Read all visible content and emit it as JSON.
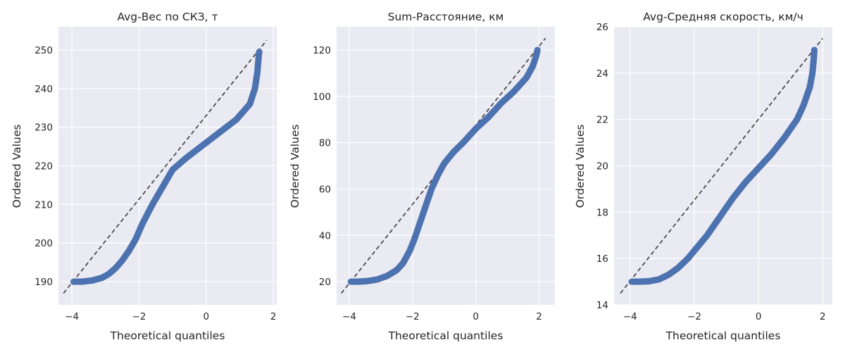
{
  "chart_data": [
    {
      "type": "scatter",
      "subtype": "qq-plot",
      "title": "Avg-Вес по СКЗ, т",
      "xlabel": "Theoretical quantiles",
      "ylabel": "Ordered Values",
      "xlim": [
        -4.4,
        2.1
      ],
      "ylim": [
        184,
        256
      ],
      "xticks": [
        -4,
        -2,
        0,
        2
      ],
      "xtick_labels": [
        "−4",
        "−2",
        "0",
        "2"
      ],
      "yticks": [
        190,
        200,
        210,
        220,
        230,
        240,
        250
      ],
      "ytick_labels": [
        "190",
        "200",
        "210",
        "220",
        "230",
        "240",
        "250"
      ],
      "grid": true,
      "reference_line": {
        "x": [
          -4.25,
          1.8
        ],
        "y": [
          187,
          252.5
        ]
      },
      "points": {
        "x": [
          -3.95,
          -3.7,
          -3.4,
          -3.1,
          -2.9,
          -2.7,
          -2.5,
          -2.3,
          -2.1,
          -1.9,
          -1.6,
          -1.3,
          -1.0,
          -0.6,
          -0.3,
          0.0,
          0.3,
          0.6,
          0.9,
          1.1,
          1.3,
          1.45,
          1.52,
          1.56,
          1.57,
          1.58
        ],
        "y": [
          190,
          190,
          190.3,
          191,
          192,
          193.5,
          195.5,
          198,
          201,
          205,
          210,
          214.5,
          219,
          222,
          224,
          226,
          228,
          230,
          232,
          234,
          236,
          240,
          244,
          248,
          249,
          249.5
        ]
      }
    },
    {
      "type": "scatter",
      "subtype": "qq-plot",
      "title": "Sum-Расстояние, км",
      "xlabel": "Theoretical quantiles",
      "ylabel": "Ordered Values",
      "xlim": [
        -4.4,
        2.5
      ],
      "ylim": [
        10,
        130
      ],
      "xticks": [
        -4,
        -2,
        0,
        2
      ],
      "xtick_labels": [
        "−4",
        "−2",
        "0",
        "2"
      ],
      "yticks": [
        20,
        40,
        60,
        80,
        100,
        120
      ],
      "ytick_labels": [
        "20",
        "40",
        "60",
        "80",
        "100",
        "120"
      ],
      "grid": true,
      "reference_line": {
        "x": [
          -4.25,
          2.2
        ],
        "y": [
          15,
          125
        ]
      },
      "points": {
        "x": [
          -3.95,
          -3.7,
          -3.4,
          -3.1,
          -2.8,
          -2.5,
          -2.3,
          -2.1,
          -1.95,
          -1.8,
          -1.6,
          -1.4,
          -1.2,
          -1.0,
          -0.7,
          -0.4,
          0.0,
          0.4,
          0.8,
          1.2,
          1.6,
          1.8,
          1.9,
          1.95
        ],
        "y": [
          20,
          20,
          20.3,
          21,
          22.5,
          25,
          28,
          33,
          38,
          44,
          52,
          60,
          66,
          71,
          76,
          80,
          86,
          91,
          97,
          102,
          108,
          113,
          117,
          120
        ]
      }
    },
    {
      "type": "scatter",
      "subtype": "qq-plot",
      "title": "Avg-Средняя скорость, км/ч",
      "xlabel": "Theoretical quantiles",
      "ylabel": "Ordered Values",
      "xlim": [
        -4.5,
        2.3
      ],
      "ylim": [
        14,
        26
      ],
      "xticks": [
        -4,
        -2,
        0,
        2
      ],
      "xtick_labels": [
        "−4",
        "−2",
        "0",
        "2"
      ],
      "yticks": [
        14,
        16,
        18,
        20,
        22,
        24,
        26
      ],
      "ytick_labels": [
        "14",
        "16",
        "18",
        "20",
        "22",
        "24",
        "26"
      ],
      "grid": true,
      "reference_line": {
        "x": [
          -4.3,
          2.0
        ],
        "y": [
          14.5,
          25.5
        ]
      },
      "points": {
        "x": [
          -3.95,
          -3.7,
          -3.4,
          -3.1,
          -2.8,
          -2.5,
          -2.2,
          -1.9,
          -1.6,
          -1.2,
          -0.8,
          -0.4,
          0.0,
          0.4,
          0.8,
          1.2,
          1.4,
          1.6,
          1.68,
          1.72,
          1.74
        ],
        "y": [
          15,
          15,
          15.02,
          15.1,
          15.3,
          15.6,
          16.0,
          16.5,
          17.0,
          17.8,
          18.6,
          19.3,
          19.9,
          20.5,
          21.2,
          22.0,
          22.6,
          23.4,
          24.0,
          24.6,
          25.0
        ]
      }
    }
  ]
}
